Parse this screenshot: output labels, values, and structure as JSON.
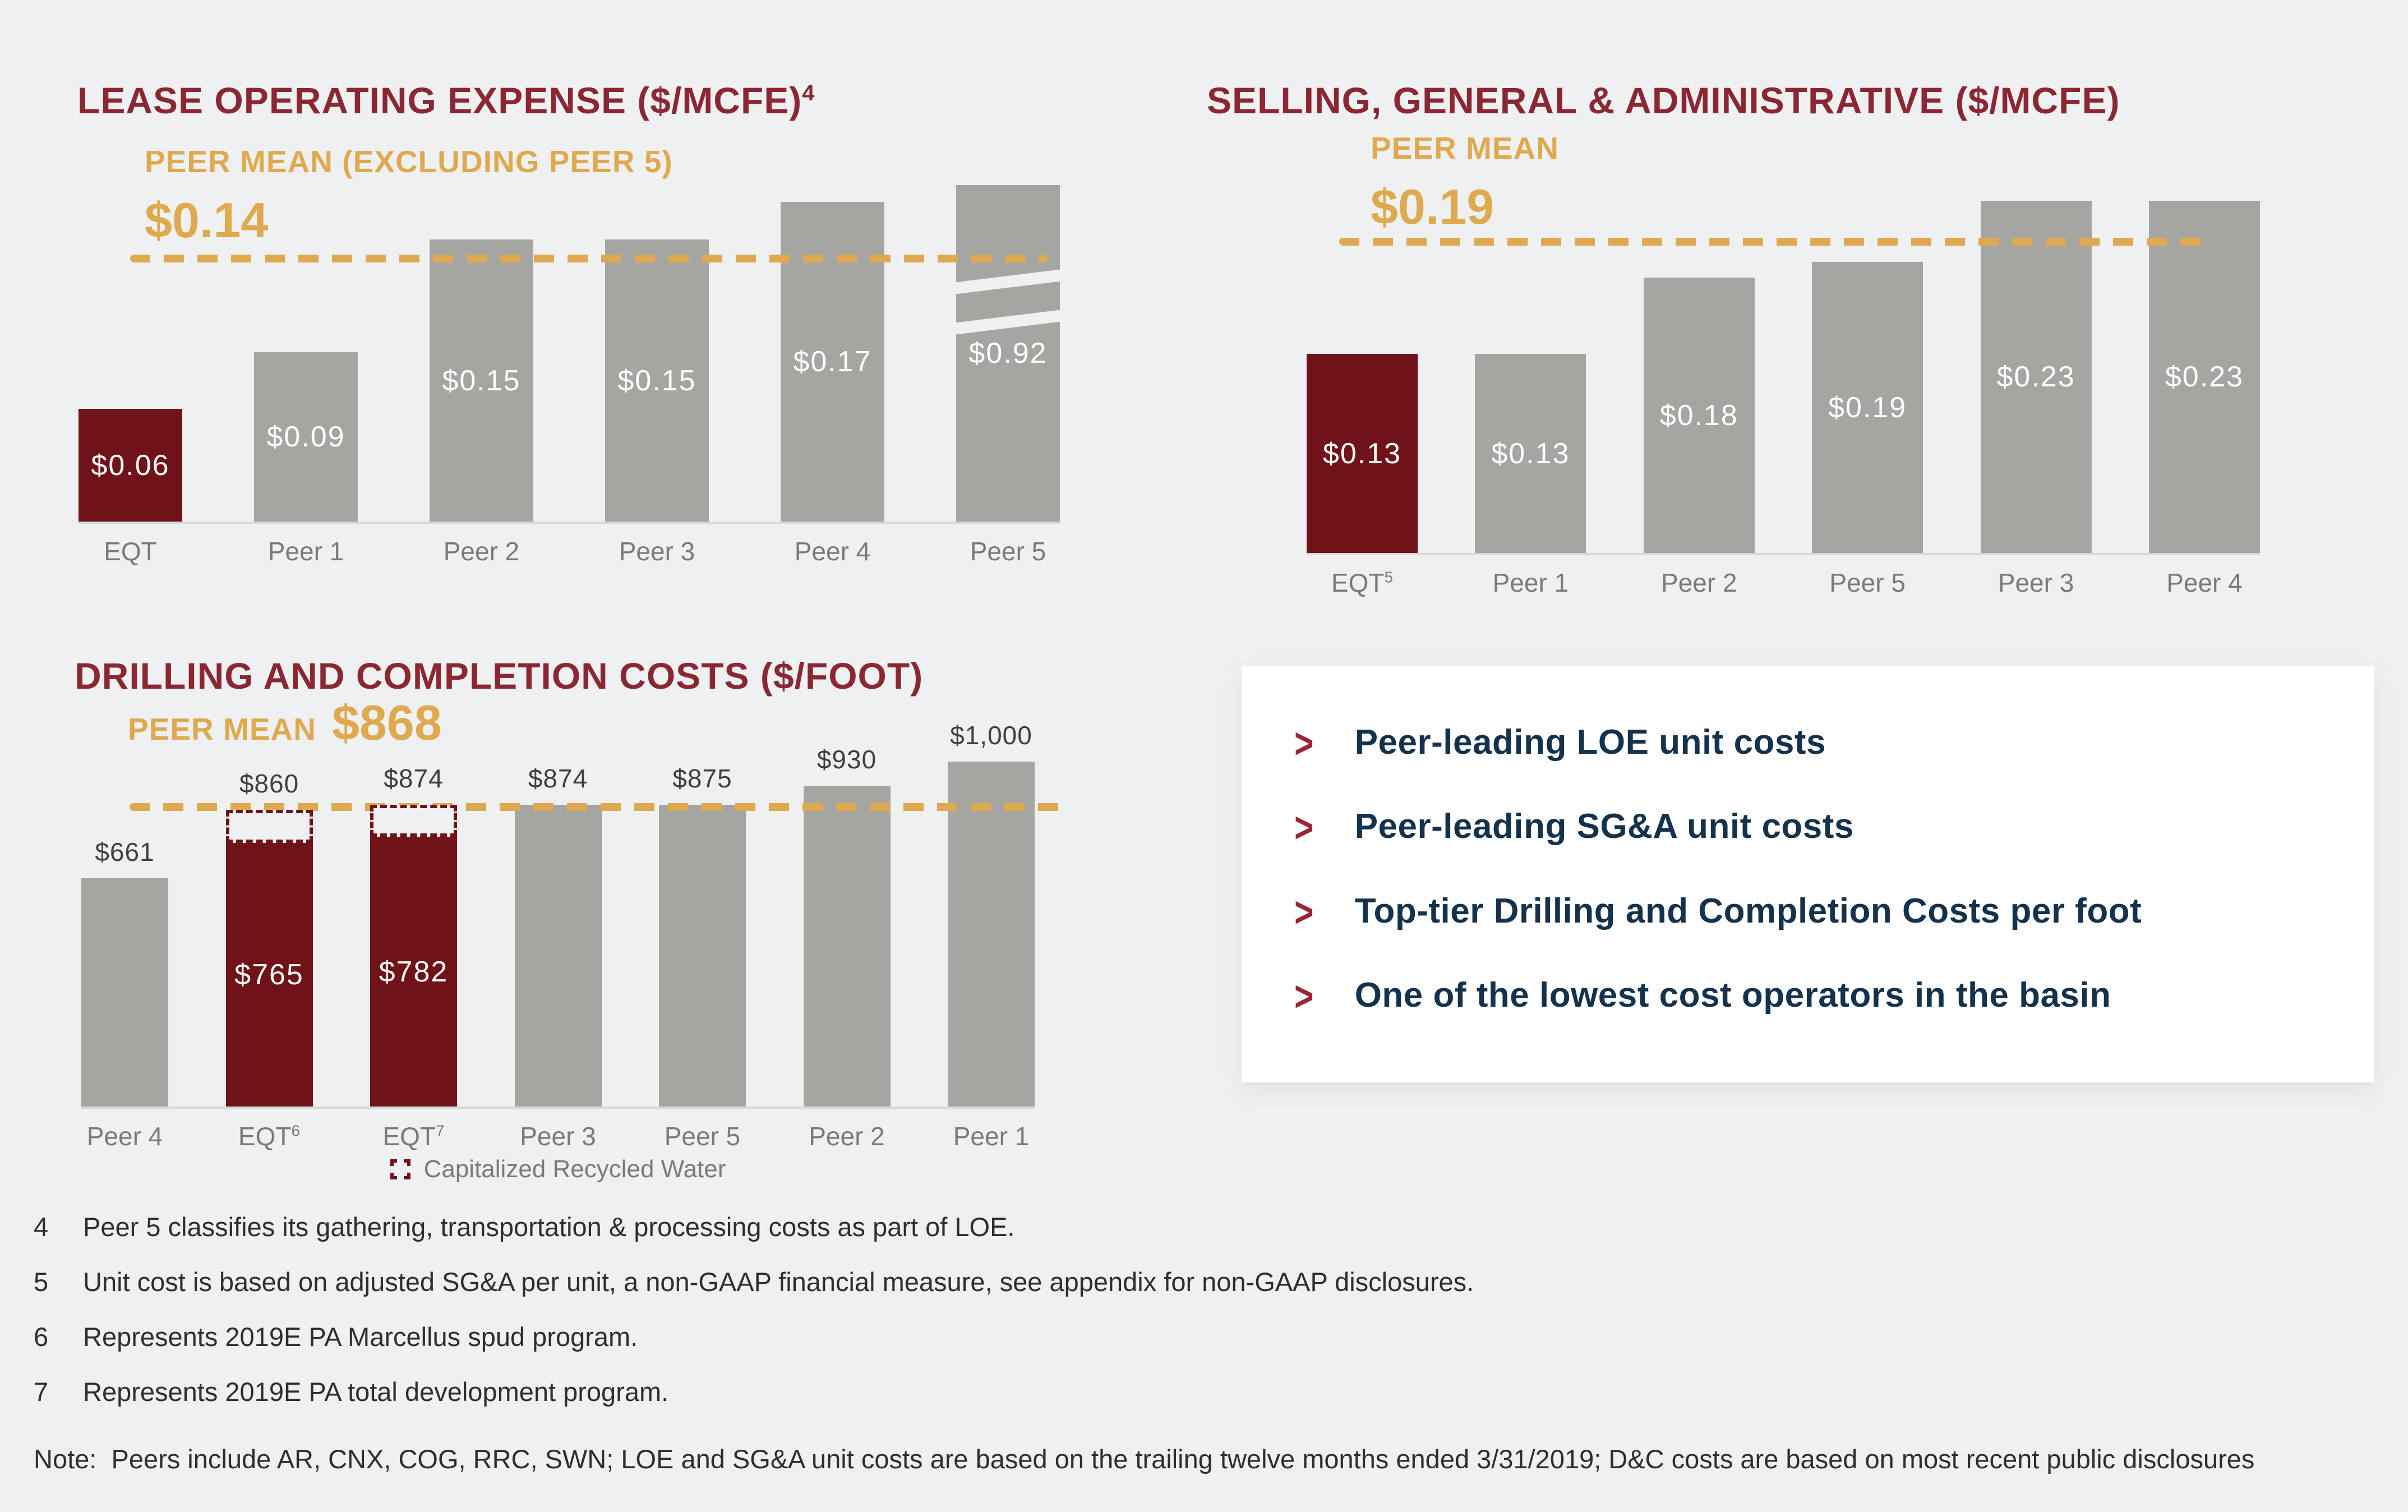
{
  "colors": {
    "background": "#eef0f1",
    "maroon_title": "#8b2733",
    "dark_red_bar": "#701318",
    "gold_accent": "#dfa94f",
    "gray_bar": "#a5a5a2",
    "navy_text": "#14324c",
    "axis_label_gray": "#7a7a7a"
  },
  "chart_data": [
    {
      "type": "bar",
      "title": "LEASE OPERATING EXPENSE ($/MCFE)",
      "title_footnote": "4",
      "peer_mean": {
        "label": "PEER MEAN (EXCLUDING PEER 5)",
        "display": "$0.14",
        "value": 0.14,
        "line_style": "gold-dashed"
      },
      "categories": [
        "EQT",
        "Peer 1",
        "Peer 2",
        "Peer 3",
        "Peer 4",
        "Peer 5"
      ],
      "category_footnotes": [
        "",
        "",
        "",
        "",
        "",
        ""
      ],
      "values": [
        0.06,
        0.09,
        0.15,
        0.15,
        0.17,
        0.92
      ],
      "value_labels": [
        "$0.06",
        "$0.09",
        "$0.15",
        "$0.15",
        "$0.17",
        "$0.92"
      ],
      "highlight_indexes": [
        0
      ],
      "axis_break_index": 5,
      "ylim": [
        0,
        0.19
      ],
      "grid": false,
      "legend_position": "none"
    },
    {
      "type": "bar",
      "title": "SELLING, GENERAL & ADMINISTRATIVE ($/MCFE)",
      "title_footnote": "",
      "peer_mean": {
        "label": "PEER MEAN",
        "display": "$0.19",
        "value": 0.19,
        "line_style": "gold-dashed"
      },
      "categories": [
        "EQT",
        "Peer 1",
        "Peer 2",
        "Peer 5",
        "Peer 3",
        "Peer 4"
      ],
      "category_footnotes": [
        "5",
        "",
        "",
        "",
        "",
        ""
      ],
      "values": [
        0.13,
        0.13,
        0.18,
        0.19,
        0.23,
        0.23
      ],
      "value_labels": [
        "$0.13",
        "$0.13",
        "$0.18",
        "$0.19",
        "$0.23",
        "$0.23"
      ],
      "highlight_indexes": [
        0
      ],
      "axis_break_index": -1,
      "ylim": [
        0,
        0.235
      ],
      "grid": false,
      "legend_position": "none"
    },
    {
      "type": "bar",
      "title": "DRILLING AND COMPLETION COSTS ($/FOOT)",
      "title_footnote": "",
      "peer_mean": {
        "label": "PEER MEAN",
        "display": "$868",
        "value": 868,
        "line_style": "gold-dashed"
      },
      "categories": [
        "Peer 4",
        "EQT",
        "EQT",
        "Peer 3",
        "Peer 5",
        "Peer 2",
        "Peer 1"
      ],
      "category_footnotes": [
        "",
        "6",
        "7",
        "",
        "",
        "",
        ""
      ],
      "values": [
        661,
        860,
        874,
        874,
        875,
        930,
        1000
      ],
      "solid_values": [
        661,
        765,
        782,
        874,
        875,
        930,
        1000
      ],
      "top_labels": [
        "$661",
        "$860",
        "$874",
        "$874",
        "$875",
        "$930",
        "$1,000"
      ],
      "inside_labels": [
        "",
        "$765",
        "$782",
        "",
        "",
        "",
        ""
      ],
      "highlight_indexes": [
        1,
        2
      ],
      "axis_break_index": -1,
      "ylim": [
        0,
        1050
      ],
      "grid": false,
      "legend": {
        "label": "Capitalized Recycled Water",
        "swatch": "dashed-dark-red-outline"
      }
    }
  ],
  "callout": {
    "bullet_icon": ">",
    "bullets": [
      "Peer-leading LOE unit costs",
      "Peer-leading SG&A unit costs",
      "Top-tier Drilling and Completion Costs per foot",
      "One of the lowest cost operators in the basin"
    ]
  },
  "footnotes": [
    {
      "num": "4",
      "text": "Peer 5 classifies its gathering, transportation & processing costs as part of LOE."
    },
    {
      "num": "5",
      "text": "Unit cost is based on adjusted SG&A per unit, a non-GAAP financial measure, see appendix for non-GAAP disclosures."
    },
    {
      "num": "6",
      "text": "Represents 2019E PA Marcellus spud program."
    },
    {
      "num": "7",
      "text": "Represents 2019E PA total development program."
    }
  ],
  "note": {
    "label": "Note:",
    "text": "Peers include AR, CNX, COG, RRC, SWN; LOE and SG&A unit costs are based on the trailing twelve months ended 3/31/2019; D&C costs are based on most recent public disclosures"
  }
}
